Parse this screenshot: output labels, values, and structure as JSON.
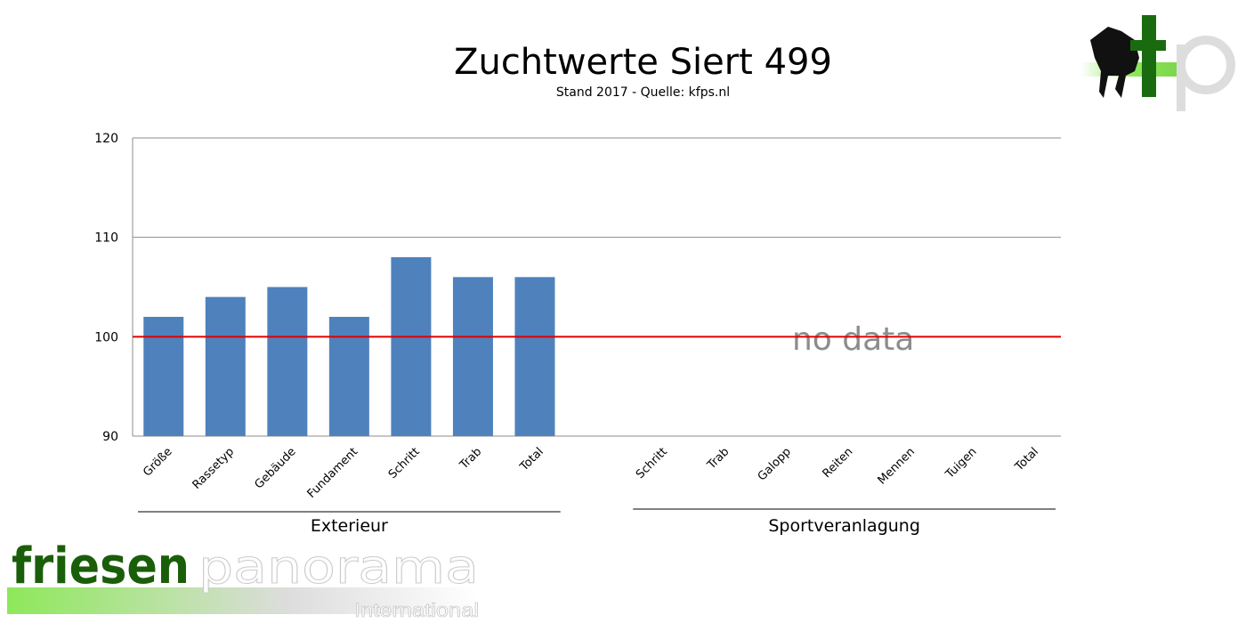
{
  "chart_data": {
    "type": "bar",
    "title": "Zuchtwerte Siert 499",
    "subtitle": "Stand 2017 - Quelle: kfps.nl",
    "ylim": [
      90,
      120
    ],
    "yticks": [
      "90",
      "100",
      "110",
      "120"
    ],
    "grid": true,
    "reference_line": {
      "value": 100,
      "color": "#e00000"
    },
    "bar_color": "#4f81bd",
    "groups": [
      {
        "name": "Exterieur",
        "categories": [
          "Größe",
          "Rassetyp",
          "Gebäude",
          "Fundament",
          "Schritt",
          "Trab",
          "Total"
        ],
        "values": [
          102,
          104,
          105,
          102,
          108,
          106,
          106
        ]
      },
      {
        "name": "Sportveranlagung",
        "categories": [
          "Schritt",
          "Trab",
          "Galopp",
          "Reiten",
          "Mennen",
          "Tuigen",
          "Total"
        ],
        "values": [
          null,
          null,
          null,
          null,
          null,
          null,
          null
        ],
        "annotation": "no data"
      }
    ]
  },
  "logos": {
    "top_right": "fp",
    "bottom_left": "friesenpanorama International"
  }
}
